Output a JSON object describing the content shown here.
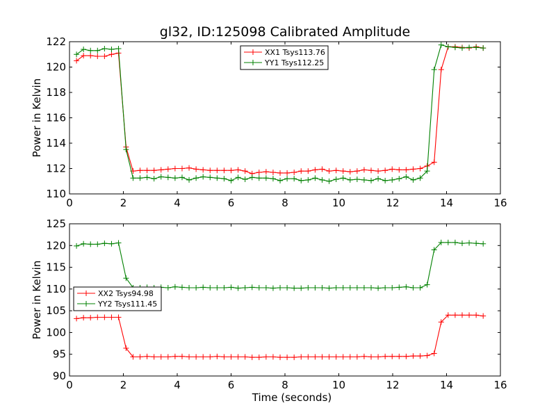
{
  "figure": {
    "title": "gl32, ID:125098 Calibrated Amplitude"
  },
  "chart_data": [
    {
      "type": "line",
      "ylabel": "Power in Kelvin",
      "xlabel": "",
      "xlim": [
        0,
        16
      ],
      "ylim": [
        110,
        122
      ],
      "xticks": [
        0,
        2,
        4,
        6,
        8,
        10,
        12,
        14,
        16
      ],
      "yticks": [
        110,
        112,
        114,
        116,
        118,
        120,
        122
      ],
      "legend_position": "upper-center",
      "x": [
        0.26,
        0.52,
        0.78,
        1.04,
        1.3,
        1.56,
        1.82,
        2.1,
        2.36,
        2.62,
        2.88,
        3.14,
        3.4,
        3.66,
        3.92,
        4.18,
        4.44,
        4.7,
        4.96,
        5.22,
        5.48,
        5.74,
        6.0,
        6.26,
        6.52,
        6.78,
        7.04,
        7.3,
        7.56,
        7.82,
        8.08,
        8.34,
        8.6,
        8.86,
        9.12,
        9.38,
        9.64,
        9.9,
        10.16,
        10.42,
        10.68,
        10.94,
        11.2,
        11.46,
        11.72,
        11.98,
        12.24,
        12.5,
        12.76,
        13.02,
        13.28,
        13.54,
        13.8,
        14.06,
        14.32,
        14.58,
        14.84,
        15.1,
        15.36
      ],
      "series": [
        {
          "name": "XX1 Tsys113.76",
          "color": "#ff0000",
          "values": [
            120.5,
            120.9,
            120.9,
            120.85,
            120.85,
            121.0,
            121.1,
            113.7,
            111.8,
            111.85,
            111.85,
            111.85,
            111.9,
            111.95,
            112.0,
            112.0,
            112.05,
            111.95,
            111.9,
            111.85,
            111.85,
            111.85,
            111.85,
            111.9,
            111.8,
            111.6,
            111.7,
            111.75,
            111.7,
            111.65,
            111.65,
            111.7,
            111.8,
            111.8,
            111.9,
            111.95,
            111.8,
            111.85,
            111.8,
            111.75,
            111.8,
            111.9,
            111.85,
            111.8,
            111.85,
            111.95,
            111.9,
            111.9,
            111.95,
            112.0,
            112.2,
            112.5,
            119.8,
            121.6,
            121.6,
            121.55,
            121.5,
            121.6,
            121.5
          ]
        },
        {
          "name": "YY1 Tsys112.25",
          "color": "#008000",
          "values": [
            121.0,
            121.4,
            121.3,
            121.3,
            121.45,
            121.4,
            121.45,
            113.5,
            111.25,
            111.25,
            111.3,
            111.2,
            111.35,
            111.3,
            111.25,
            111.3,
            111.1,
            111.25,
            111.35,
            111.3,
            111.25,
            111.2,
            111.05,
            111.3,
            111.15,
            111.3,
            111.25,
            111.25,
            111.2,
            111.05,
            111.2,
            111.2,
            111.05,
            111.1,
            111.25,
            111.1,
            111.0,
            111.15,
            111.25,
            111.1,
            111.15,
            111.1,
            111.05,
            111.2,
            111.05,
            111.1,
            111.2,
            111.35,
            111.1,
            111.25,
            111.8,
            119.8,
            121.75,
            121.6,
            121.55,
            121.5,
            121.55,
            121.55,
            121.5
          ]
        }
      ]
    },
    {
      "type": "line",
      "ylabel": "Power in Kelvin",
      "xlabel": "Time (seconds)",
      "xlim": [
        0,
        16
      ],
      "ylim": [
        90,
        125
      ],
      "xticks": [
        0,
        2,
        4,
        6,
        8,
        10,
        12,
        14,
        16
      ],
      "yticks": [
        90,
        95,
        100,
        105,
        110,
        115,
        120,
        125
      ],
      "legend_position": "center-left",
      "x": [
        0.26,
        0.52,
        0.78,
        1.04,
        1.3,
        1.56,
        1.82,
        2.1,
        2.36,
        2.62,
        2.88,
        3.14,
        3.4,
        3.66,
        3.92,
        4.18,
        4.44,
        4.7,
        4.96,
        5.22,
        5.48,
        5.74,
        6.0,
        6.26,
        6.52,
        6.78,
        7.04,
        7.3,
        7.56,
        7.82,
        8.08,
        8.34,
        8.6,
        8.86,
        9.12,
        9.38,
        9.64,
        9.9,
        10.16,
        10.42,
        10.68,
        10.94,
        11.2,
        11.46,
        11.72,
        11.98,
        12.24,
        12.5,
        12.76,
        13.02,
        13.28,
        13.54,
        13.8,
        14.06,
        14.32,
        14.58,
        14.84,
        15.1,
        15.36
      ],
      "series": [
        {
          "name": "XX2 Tsys94.98",
          "color": "#ff0000",
          "values": [
            103.2,
            103.4,
            103.4,
            103.5,
            103.5,
            103.5,
            103.5,
            96.4,
            94.4,
            94.4,
            94.5,
            94.4,
            94.4,
            94.4,
            94.5,
            94.5,
            94.4,
            94.4,
            94.4,
            94.4,
            94.5,
            94.4,
            94.4,
            94.4,
            94.4,
            94.3,
            94.3,
            94.4,
            94.4,
            94.3,
            94.3,
            94.3,
            94.4,
            94.4,
            94.4,
            94.4,
            94.4,
            94.4,
            94.4,
            94.4,
            94.4,
            94.5,
            94.4,
            94.4,
            94.5,
            94.5,
            94.5,
            94.5,
            94.6,
            94.6,
            94.7,
            95.2,
            102.4,
            104.0,
            104.0,
            104.0,
            104.0,
            104.0,
            103.8
          ]
        },
        {
          "name": "YY2 Tsys111.45",
          "color": "#008000",
          "values": [
            119.9,
            120.4,
            120.3,
            120.3,
            120.5,
            120.4,
            120.6,
            112.5,
            110.3,
            110.3,
            110.4,
            110.3,
            110.4,
            110.3,
            110.5,
            110.4,
            110.3,
            110.3,
            110.4,
            110.3,
            110.3,
            110.3,
            110.4,
            110.2,
            110.3,
            110.4,
            110.3,
            110.3,
            110.2,
            110.3,
            110.3,
            110.2,
            110.2,
            110.3,
            110.3,
            110.3,
            110.2,
            110.3,
            110.3,
            110.3,
            110.3,
            110.3,
            110.3,
            110.2,
            110.3,
            110.3,
            110.4,
            110.5,
            110.3,
            110.3,
            111.0,
            119.0,
            120.7,
            120.7,
            120.7,
            120.5,
            120.6,
            120.5,
            120.4
          ]
        }
      ]
    }
  ]
}
